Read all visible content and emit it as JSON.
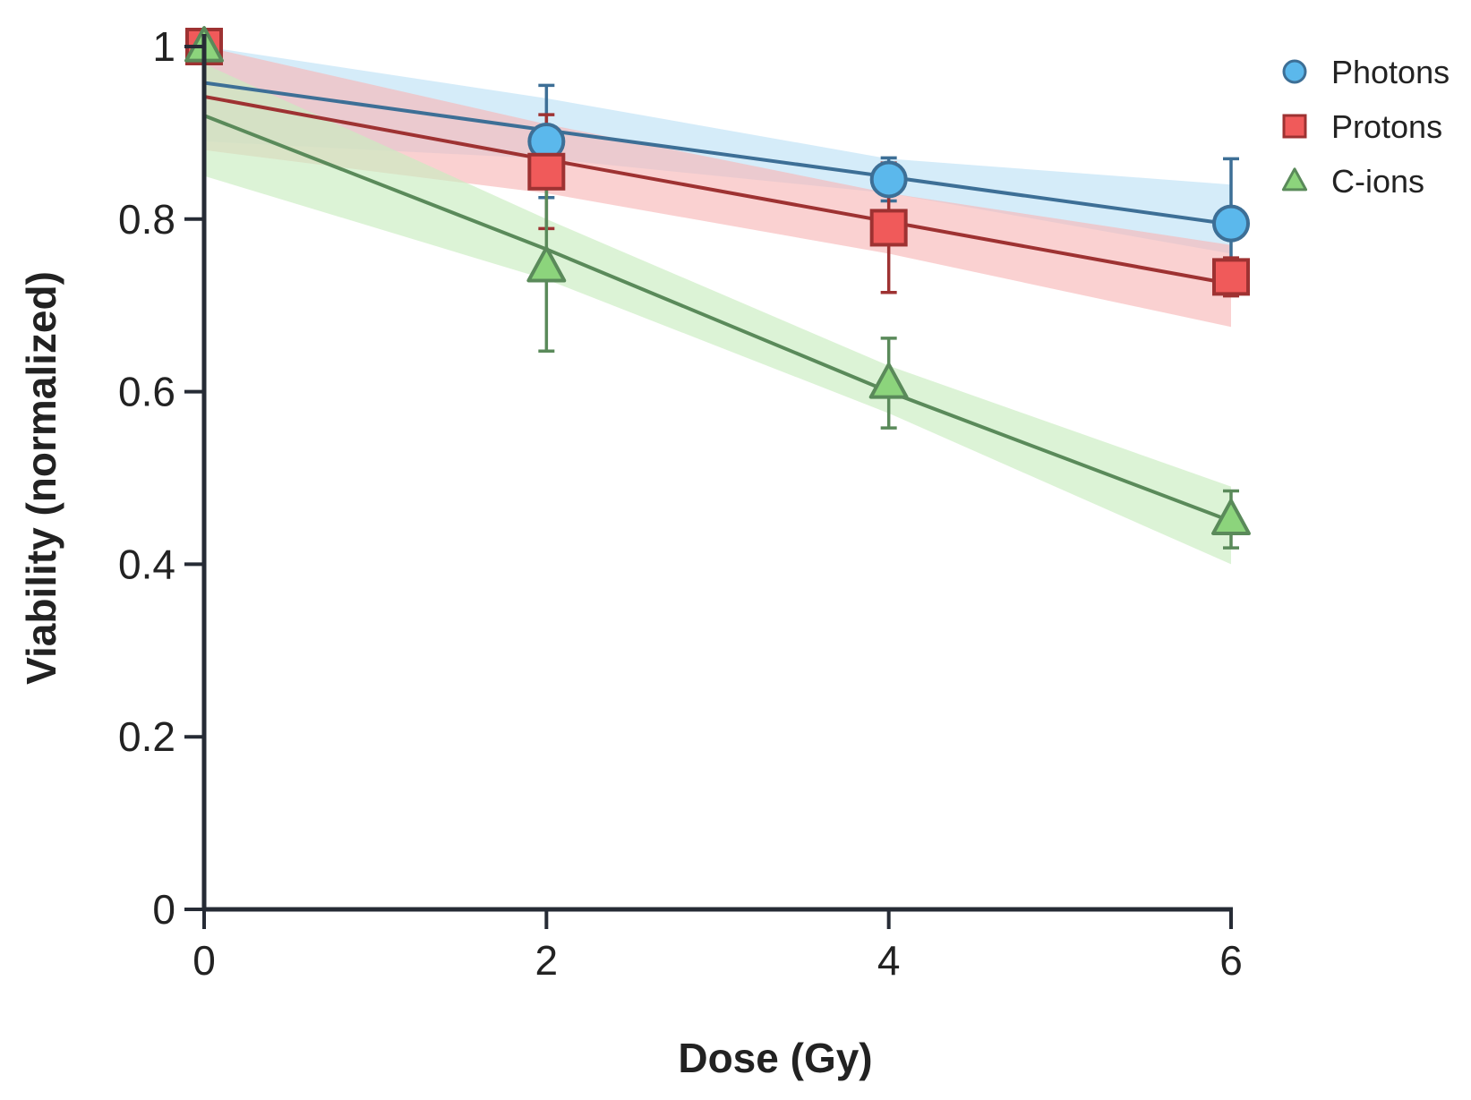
{
  "chart_data": {
    "type": "line",
    "xlabel": "Dose (Gy)",
    "ylabel": "Viability (normalized)",
    "xlim": [
      0,
      6
    ],
    "ylim": [
      0,
      1
    ],
    "x_ticks": [
      0,
      2,
      4,
      6
    ],
    "y_ticks": [
      0,
      0.2,
      0.4,
      0.6,
      0.8,
      1
    ],
    "y_tick_labels": [
      "0",
      "0.2",
      "0.4",
      "0.6",
      "0.8",
      "1"
    ],
    "grid": false,
    "legend_position": "top-right",
    "series": [
      {
        "name": "Photons",
        "marker": "circle",
        "color": "#5bb8ec",
        "line_color": "#3d6f96",
        "band_color": "#bfe2f6",
        "x": [
          0,
          2,
          4,
          6
        ],
        "y": [
          1.0,
          0.89,
          0.846,
          0.795
        ],
        "err": [
          0.0,
          0.065,
          0.025,
          0.075
        ],
        "fit": {
          "x": [
            0,
            2,
            4,
            6
          ],
          "y": [
            0.958,
            0.903,
            0.849,
            0.794
          ]
        },
        "band": {
          "lower": [
            0.89,
            0.87,
            0.83,
            0.76
          ],
          "upper": [
            1.0,
            0.94,
            0.87,
            0.84
          ]
        }
      },
      {
        "name": "Protons",
        "marker": "square",
        "color": "#f05a5a",
        "line_color": "#9e3232",
        "band_color": "#f8b8b8",
        "x": [
          0,
          2,
          4,
          6
        ],
        "y": [
          1.0,
          0.855,
          0.79,
          0.733
        ],
        "err": [
          0.0,
          0.066,
          0.075,
          0.022
        ],
        "fit": {
          "x": [
            0,
            2,
            4,
            6
          ],
          "y": [
            0.942,
            0.869,
            0.797,
            0.725
          ]
        },
        "band": {
          "lower": [
            0.88,
            0.83,
            0.76,
            0.675
          ],
          "upper": [
            1.0,
            0.91,
            0.83,
            0.77
          ]
        }
      },
      {
        "name": "C-ions",
        "marker": "triangle",
        "color": "#8cd47c",
        "line_color": "#5a8a5a",
        "band_color": "#c9edc0",
        "x": [
          0,
          2,
          4,
          6
        ],
        "y": [
          1.0,
          0.745,
          0.61,
          0.452
        ],
        "err": [
          0.0,
          0.098,
          0.052,
          0.033
        ],
        "fit": {
          "x": [
            0,
            2,
            4,
            6
          ],
          "y": [
            0.92,
            0.765,
            0.6,
            0.45
          ]
        },
        "band": {
          "lower": [
            0.85,
            0.73,
            0.575,
            0.4
          ],
          "upper": [
            0.98,
            0.8,
            0.63,
            0.49
          ]
        }
      }
    ]
  }
}
